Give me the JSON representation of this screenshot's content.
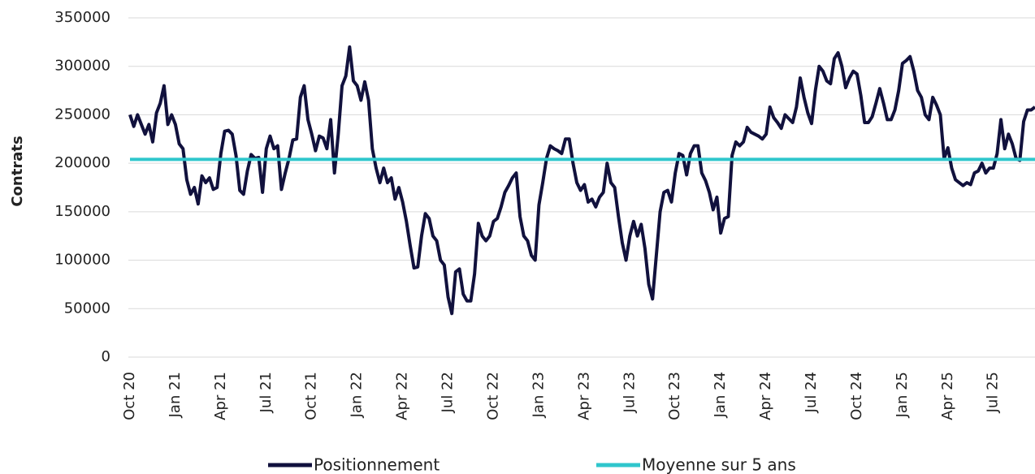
{
  "chart_data": {
    "type": "line",
    "y_label": "Contrats",
    "categories": [
      "Oct 20",
      null,
      null,
      null,
      null,
      null,
      null,
      null,
      null,
      null,
      null,
      null,
      "Jan 21",
      null,
      null,
      null,
      null,
      null,
      null,
      null,
      null,
      null,
      null,
      null,
      "Apr 21",
      null,
      null,
      null,
      null,
      null,
      null,
      null,
      null,
      null,
      null,
      null,
      "Jul 21",
      null,
      null,
      null,
      null,
      null,
      null,
      null,
      null,
      null,
      null,
      null,
      "Oct 21",
      null,
      null,
      null,
      null,
      null,
      null,
      null,
      null,
      null,
      null,
      null,
      "Jan 22",
      null,
      null,
      null,
      null,
      null,
      null,
      null,
      null,
      null,
      null,
      null,
      "Apr 22",
      null,
      null,
      null,
      null,
      null,
      null,
      null,
      null,
      null,
      null,
      null,
      "Jul 22",
      null,
      null,
      null,
      null,
      null,
      null,
      null,
      null,
      null,
      null,
      null,
      "Oct 22",
      null,
      null,
      null,
      null,
      null,
      null,
      null,
      null,
      null,
      null,
      null,
      "Jan 23",
      null,
      null,
      null,
      null,
      null,
      null,
      null,
      null,
      null,
      null,
      null,
      "Apr 23",
      null,
      null,
      null,
      null,
      null,
      null,
      null,
      null,
      null,
      null,
      null,
      "Jul 23",
      null,
      null,
      null,
      null,
      null,
      null,
      null,
      null,
      null,
      null,
      null,
      "Oct 23",
      null,
      null,
      null,
      null,
      null,
      null,
      null,
      null,
      null,
      null,
      null,
      "Jan 24",
      null,
      null,
      null,
      null,
      null,
      null,
      null,
      null,
      null,
      null,
      null,
      "Apr 24",
      null,
      null,
      null,
      null,
      null,
      null,
      null,
      null,
      null,
      null,
      null,
      "Jul 24",
      null,
      null,
      null,
      null,
      null,
      null,
      null,
      null,
      null,
      null,
      null,
      "Oct 24",
      null,
      null,
      null,
      null,
      null,
      null,
      null,
      null,
      null,
      null,
      null,
      "Jan 25",
      null,
      null,
      null,
      null,
      null,
      null,
      null,
      null,
      null,
      null,
      null,
      "Apr 25",
      null,
      null,
      null,
      null,
      null,
      null,
      null,
      null,
      null,
      null,
      null,
      "Jul 25",
      null,
      null,
      null,
      null,
      null,
      null,
      null,
      null,
      null,
      null,
      null
    ],
    "series": [
      {
        "name": "Positionnement",
        "color": "#11113d",
        "values": [
          250000,
          238000,
          250000,
          240000,
          230000,
          240000,
          222000,
          252000,
          262000,
          280000,
          240000,
          250000,
          240000,
          220000,
          215000,
          183000,
          168000,
          175000,
          158000,
          187000,
          180000,
          185000,
          173000,
          175000,
          210000,
          233000,
          234000,
          230000,
          208000,
          172000,
          168000,
          192000,
          209000,
          205000,
          206000,
          170000,
          215000,
          228000,
          215000,
          218000,
          173000,
          190000,
          205000,
          224000,
          225000,
          268000,
          280000,
          245000,
          230000,
          213000,
          228000,
          226000,
          215000,
          245000,
          190000,
          230000,
          280000,
          290000,
          320000,
          285000,
          280000,
          265000,
          284000,
          265000,
          215000,
          195000,
          180000,
          195000,
          180000,
          185000,
          163000,
          175000,
          160000,
          140000,
          115000,
          92000,
          93000,
          125000,
          148000,
          143000,
          125000,
          120000,
          100000,
          95000,
          62000,
          45000,
          88000,
          91000,
          65000,
          58000,
          58000,
          86000,
          138000,
          125000,
          120000,
          125000,
          140000,
          143000,
          155000,
          170000,
          177000,
          185000,
          190000,
          145000,
          125000,
          120000,
          105000,
          100000,
          157000,
          180000,
          205000,
          218000,
          215000,
          213000,
          210000,
          225000,
          225000,
          200000,
          180000,
          172000,
          178000,
          160000,
          163000,
          155000,
          165000,
          170000,
          200000,
          180000,
          175000,
          145000,
          118000,
          100000,
          125000,
          140000,
          125000,
          137000,
          112000,
          75000,
          60000,
          105000,
          150000,
          170000,
          172000,
          160000,
          190000,
          210000,
          208000,
          188000,
          210000,
          218000,
          218000,
          190000,
          182000,
          170000,
          152000,
          165000,
          128000,
          143000,
          145000,
          208000,
          222000,
          218000,
          222000,
          237000,
          232000,
          230000,
          228000,
          225000,
          230000,
          258000,
          247000,
          242000,
          236000,
          250000,
          246000,
          242000,
          258000,
          288000,
          268000,
          252000,
          241000,
          275000,
          300000,
          295000,
          285000,
          282000,
          308000,
          314000,
          300000,
          278000,
          288000,
          295000,
          292000,
          270000,
          242000,
          242000,
          248000,
          262000,
          277000,
          262000,
          245000,
          245000,
          255000,
          275000,
          303000,
          306000,
          310000,
          295000,
          275000,
          268000,
          250000,
          245000,
          268000,
          260000,
          250000,
          205000,
          216000,
          195000,
          183000,
          180000,
          177000,
          180000,
          178000,
          190000,
          192000,
          200000,
          190000,
          195000,
          195000,
          210000,
          245000,
          215000,
          230000,
          220000,
          205000,
          203000,
          243000,
          255000,
          255000,
          258000
        ]
      },
      {
        "name": "Moyenne sur 5 ans",
        "color": "#2fc6cc",
        "values": [
          204000,
          204000,
          204000,
          204000,
          204000,
          204000,
          204000,
          204000,
          204000,
          204000,
          204000,
          204000,
          204000,
          204000,
          204000,
          204000,
          204000,
          204000,
          204000,
          204000,
          204000,
          204000,
          204000,
          204000,
          204000,
          204000,
          204000,
          204000,
          204000,
          204000,
          204000,
          204000,
          204000,
          204000,
          204000,
          204000,
          204000,
          204000,
          204000,
          204000,
          204000,
          204000,
          204000,
          204000,
          204000,
          204000,
          204000,
          204000,
          204000,
          204000,
          204000,
          204000,
          204000,
          204000,
          204000,
          204000,
          204000,
          204000,
          204000,
          204000,
          204000,
          204000,
          204000,
          204000,
          204000,
          204000,
          204000,
          204000,
          204000,
          204000,
          204000,
          204000,
          204000,
          204000,
          204000,
          204000,
          204000,
          204000,
          204000,
          204000,
          204000,
          204000,
          204000,
          204000,
          204000,
          204000,
          204000,
          204000,
          204000,
          204000,
          204000,
          204000,
          204000,
          204000,
          204000,
          204000,
          204000,
          204000,
          204000,
          204000,
          204000,
          204000,
          204000,
          204000,
          204000,
          204000,
          204000,
          204000,
          204000,
          204000,
          204000,
          204000,
          204000,
          204000,
          204000,
          204000,
          204000,
          204000,
          204000,
          204000,
          204000,
          204000,
          204000,
          204000,
          204000,
          204000,
          204000,
          204000,
          204000,
          204000,
          204000,
          204000,
          204000,
          204000,
          204000,
          204000,
          204000,
          204000,
          204000,
          204000,
          204000,
          204000,
          204000,
          204000,
          204000,
          204000,
          204000,
          204000,
          204000,
          204000,
          204000,
          204000,
          204000,
          204000,
          204000,
          204000,
          204000,
          204000,
          204000,
          204000,
          204000,
          204000,
          204000,
          204000,
          204000,
          204000,
          204000,
          204000,
          204000,
          204000,
          204000,
          204000,
          204000,
          204000,
          204000,
          204000,
          204000,
          204000,
          204000,
          204000,
          204000,
          204000,
          204000,
          204000,
          204000,
          204000,
          204000,
          204000,
          204000,
          204000,
          204000,
          204000,
          204000,
          204000,
          204000,
          204000,
          204000,
          204000,
          204000,
          204000,
          204000,
          204000,
          204000,
          204000,
          204000,
          204000,
          204000,
          204000,
          204000,
          204000,
          204000,
          204000,
          204000,
          204000,
          204000,
          204000,
          204000,
          204000,
          204000,
          204000,
          204000,
          204000,
          204000,
          204000,
          204000,
          204000,
          204000,
          204000,
          204000,
          204000,
          204000,
          204000,
          204000,
          204000,
          204000,
          204000,
          204000,
          204000,
          204000,
          204000
        ]
      }
    ],
    "ylim": [
      0,
      350000
    ],
    "yticks": [
      0,
      50000,
      100000,
      150000,
      200000,
      250000,
      300000,
      350000
    ],
    "grid": true,
    "legend": "bottom"
  }
}
